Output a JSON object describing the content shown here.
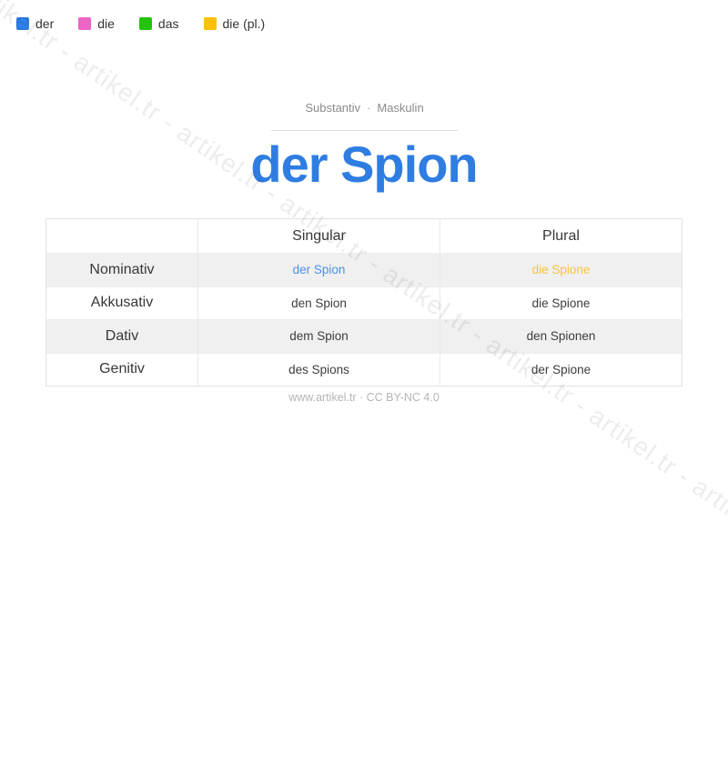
{
  "legend": {
    "items": [
      {
        "label": "der",
        "color": "#2f80e8"
      },
      {
        "label": "die",
        "color": "#ec64c4"
      },
      {
        "label": "das",
        "color": "#24c30c"
      },
      {
        "label": "die (pl.)",
        "color": "#fcc00d"
      }
    ]
  },
  "header": {
    "category": "Substantiv",
    "separator": "·",
    "gender": "Maskulin",
    "title": "der Spion"
  },
  "table": {
    "column_headers": {
      "singular": "Singular",
      "plural": "Plural"
    },
    "rows": [
      {
        "case": "Nominativ",
        "singular": "der Spion",
        "plural": "die Spione"
      },
      {
        "case": "Akkusativ",
        "singular": "den Spion",
        "plural": "die Spione"
      },
      {
        "case": "Dativ",
        "singular": "dem Spion",
        "plural": "den Spionen"
      },
      {
        "case": "Genitiv",
        "singular": "des Spions",
        "plural": "der Spione"
      }
    ]
  },
  "colors": {
    "title_blue": "#2f7de1",
    "nominative_singular_text": "#4a90e2",
    "nominative_plural_text": "#f6c53d",
    "shaded_row_background": "#f0f0f0"
  },
  "footer": {
    "text": "www.artikel.tr · CC BY-NC 4.0"
  },
  "watermark": {
    "text": "artikel.tr - artikel.tr - artikel.tr - artikel.tr - artikel.tr - artikel.tr - artikel.tr - artikel.tr - artikel.tr"
  }
}
